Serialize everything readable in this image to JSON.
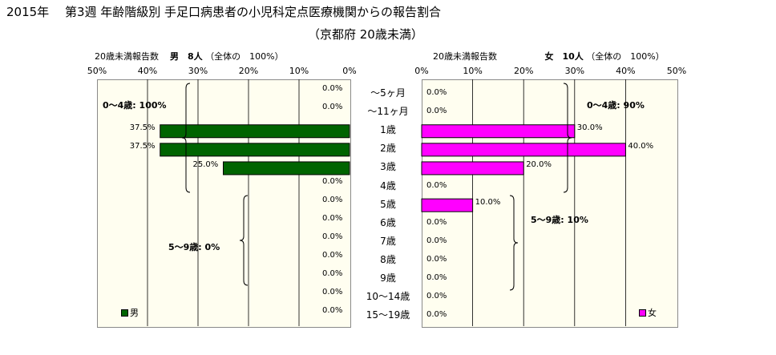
{
  "title": {
    "line1": "2015年　 第3週 年齢階級別 手足口病患者の小児科定点医療機関からの報告割合",
    "line2": "（京都府 20歳未満）"
  },
  "male_header": {
    "left": "20歳未満報告数",
    "bold": "男　8人",
    "right": "（全体の　100%）"
  },
  "female_header": {
    "left": "20歳未満報告数",
    "bold": "女　10人",
    "right": "（全体の　100%）"
  },
  "annotations": {
    "male_0_4": "0～4歳: 100%",
    "male_5_9": "5～9歳: 0%",
    "female_0_4": "0～4歳: 90%",
    "female_5_9": "5～9歳: 10%"
  },
  "colors": {
    "male": "#006400",
    "female": "#ff00ff",
    "plot_bg": "#fffef0",
    "grid": "#000000"
  },
  "chart_data": {
    "type": "bar",
    "orientation": "horizontal, back-to-back",
    "categories": [
      "～5ヶ月",
      "～11ヶ月",
      "1歳",
      "2歳",
      "3歳",
      "4歳",
      "5歳",
      "6歳",
      "7歳",
      "8歳",
      "9歳",
      "10～14歳",
      "15～19歳"
    ],
    "xlim": [
      0,
      50
    ],
    "ticks": [
      "50%",
      "40%",
      "30%",
      "20%",
      "10%",
      "0%"
    ],
    "female_ticks": [
      "0%",
      "10%",
      "20%",
      "30%",
      "40%",
      "50%"
    ],
    "series": [
      {
        "name": "男",
        "values": [
          0,
          0,
          37.5,
          37.5,
          25,
          0,
          0,
          0,
          0,
          0,
          0,
          0,
          0
        ],
        "labels": [
          "0.0%",
          "0.0%",
          "37.5%",
          "37.5%",
          "25.0%",
          "0.0%",
          "0.0%",
          "0.0%",
          "0.0%",
          "0.0%",
          "0.0%",
          "0.0%",
          "0.0%"
        ]
      },
      {
        "name": "女",
        "values": [
          0,
          0,
          30,
          40,
          20,
          0,
          10,
          0,
          0,
          0,
          0,
          0,
          0
        ],
        "labels": [
          "0.0%",
          "0.0%",
          "30.0%",
          "40.0%",
          "20.0%",
          "0.0%",
          "10.0%",
          "0.0%",
          "0.0%",
          "0.0%",
          "0.0%",
          "0.0%",
          "0.0%"
        ]
      }
    ],
    "grid": true,
    "legend": "bottom-left (男), bottom-right (女)"
  }
}
